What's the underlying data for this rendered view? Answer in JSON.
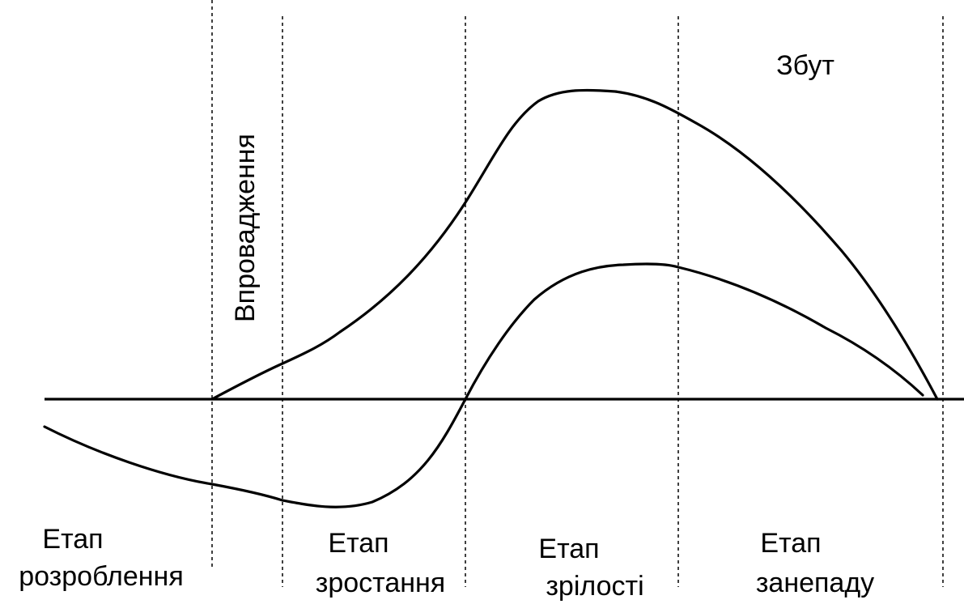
{
  "title": "Збут",
  "introduction_label": "Впровадження",
  "phases": [
    {
      "line1": "Етап",
      "line2": "розроблення"
    },
    {
      "line1": "Етап",
      "line2": "зростання"
    },
    {
      "line1": "Етап",
      "line2": "зрілості"
    },
    {
      "line1": "Етап",
      "line2": "занепаду"
    }
  ],
  "colors": {
    "ink": "#000000",
    "background": "#ffffff"
  }
}
